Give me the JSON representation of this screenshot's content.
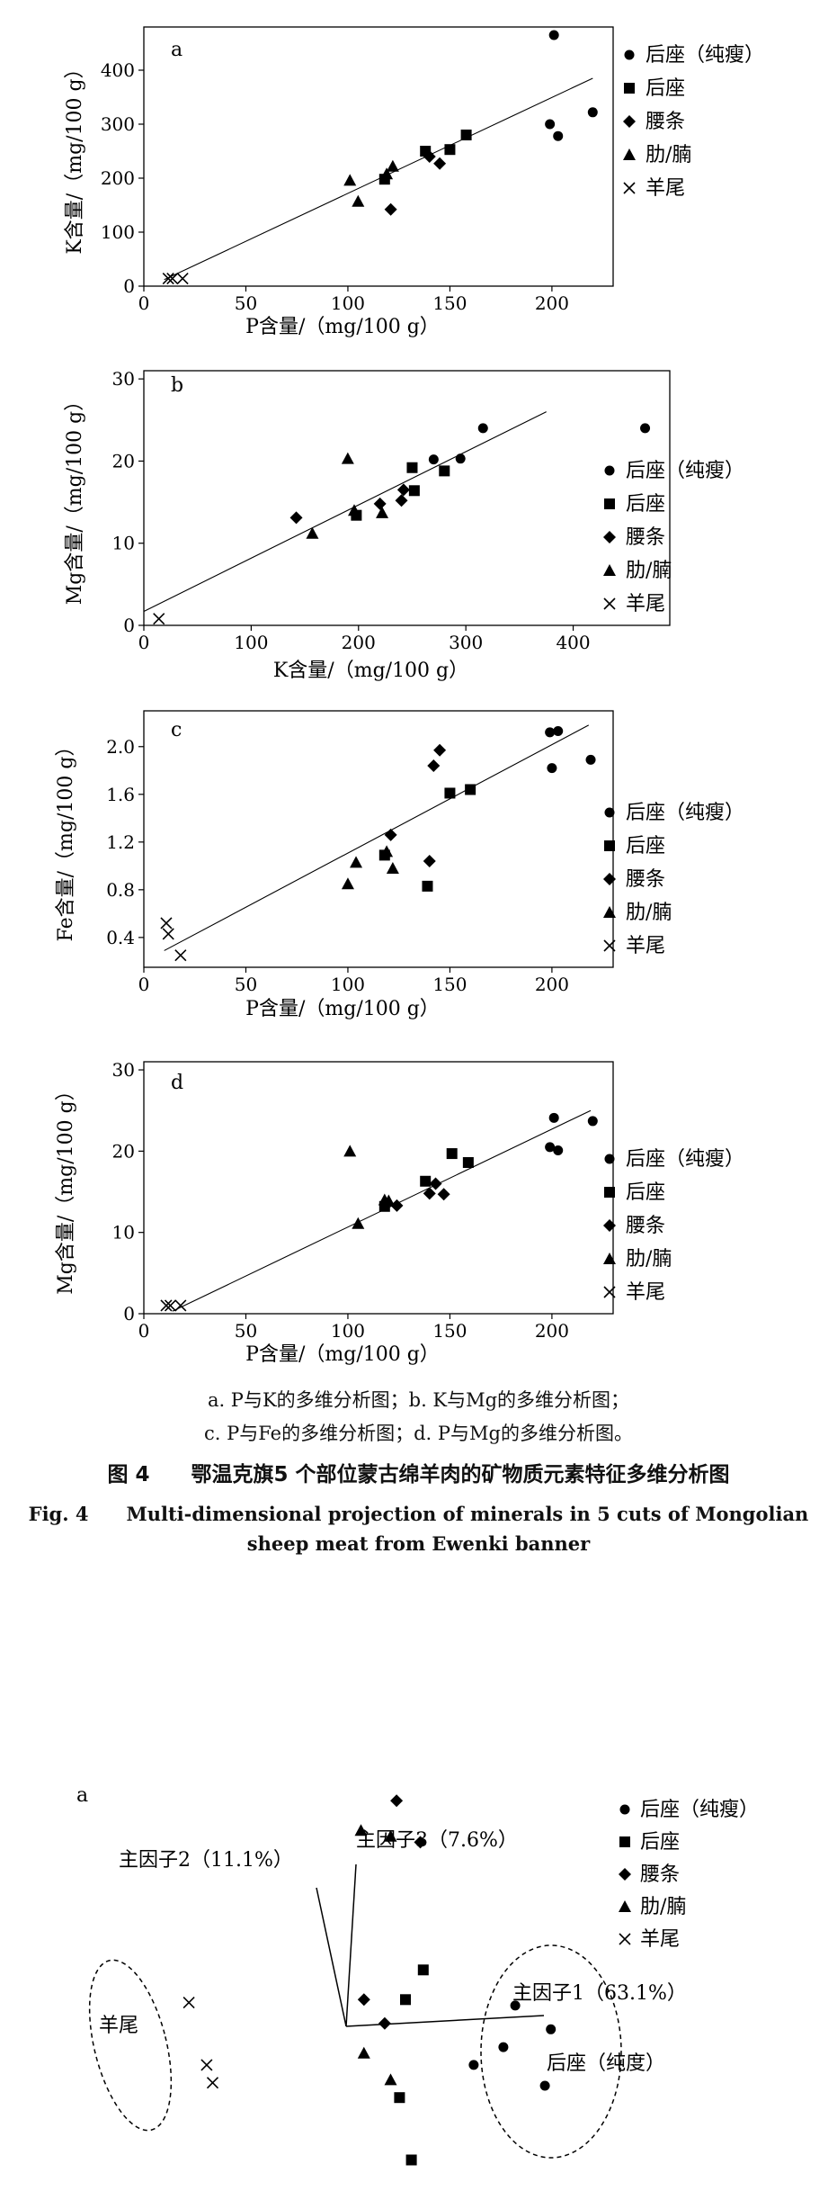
{
  "legend_labels": [
    "后座（纯瘦）",
    "后座",
    "腰条",
    "肋/腩",
    "羊尾"
  ],
  "caption": {
    "line1": "a. P与K的多维分析图；b. K与Mg的多维分析图；",
    "line2": "c. P与Fe的多维分析图；d. P与Mg的多维分析图。",
    "title_cn": "图 4　　鄂温克旗5 个部位蒙古绵羊肉的矿物质元素特征多维分析图",
    "title_en_1": "Fig. 4　　Multi-dimensional projection of minerals in 5 cuts of Mongolian",
    "title_en_2": "sheep meat from Ewenki banner"
  },
  "chart_data": [
    {
      "type": "scatter",
      "panel_label": "a",
      "xlabel": "P含量/（mg/100 g）",
      "ylabel": "K含量/（mg/100 g）",
      "xlim": [
        0,
        230
      ],
      "ylim": [
        0,
        480
      ],
      "xticks": [
        0,
        50,
        100,
        150,
        200
      ],
      "yticks": [
        0,
        100,
        200,
        300,
        400
      ],
      "legend_position": "right",
      "series": [
        {
          "name": "后座（纯瘦）",
          "marker": "circle",
          "points": [
            [
              201,
              465
            ],
            [
              199,
              300
            ],
            [
              203,
              278
            ],
            [
              220,
              322
            ]
          ]
        },
        {
          "name": "后座",
          "marker": "square",
          "points": [
            [
              118,
              198
            ],
            [
              138,
              250
            ],
            [
              150,
              253
            ],
            [
              158,
              280
            ]
          ]
        },
        {
          "name": "腰条",
          "marker": "diamond",
          "points": [
            [
              121,
              142
            ],
            [
              140,
              240
            ],
            [
              145,
              227
            ]
          ]
        },
        {
          "name": "肋/腩",
          "marker": "triangle",
          "points": [
            [
              101,
              196
            ],
            [
              105,
              157
            ],
            [
              119,
              208
            ],
            [
              122,
              222
            ]
          ]
        },
        {
          "name": "羊尾",
          "marker": "cross",
          "points": [
            [
              12,
              14
            ],
            [
              14,
              14
            ],
            [
              19,
              14
            ]
          ]
        }
      ],
      "trendline": [
        [
          10,
          12
        ],
        [
          220,
          385
        ]
      ]
    },
    {
      "type": "scatter",
      "panel_label": "b",
      "xlabel": "K含量/（mg/100 g）",
      "ylabel": "Mg含量/（mg/100 g）",
      "xlim": [
        0,
        490
      ],
      "ylim": [
        0,
        31
      ],
      "xticks": [
        0,
        100,
        200,
        300,
        400
      ],
      "yticks": [
        0,
        10,
        20,
        30
      ],
      "legend_position": "right",
      "series": [
        {
          "name": "后座（纯瘦）",
          "marker": "circle",
          "points": [
            [
              270,
              20.2
            ],
            [
              295,
              20.3
            ],
            [
              316,
              24.0
            ],
            [
              467,
              24.0
            ]
          ]
        },
        {
          "name": "后座",
          "marker": "square",
          "points": [
            [
              198,
              13.4
            ],
            [
              250,
              19.2
            ],
            [
              252,
              16.4
            ],
            [
              280,
              18.8
            ]
          ]
        },
        {
          "name": "腰条",
          "marker": "diamond",
          "points": [
            [
              142,
              13.1
            ],
            [
              220,
              14.8
            ],
            [
              240,
              15.2
            ],
            [
              242,
              16.5
            ]
          ]
        },
        {
          "name": "肋/腩",
          "marker": "triangle",
          "points": [
            [
              157,
              11.2
            ],
            [
              190,
              20.3
            ],
            [
              196,
              14.0
            ],
            [
              222,
              13.7
            ]
          ]
        },
        {
          "name": "羊尾",
          "marker": "cross",
          "points": [
            [
              14,
              0.8
            ]
          ]
        }
      ],
      "trendline": [
        [
          0,
          1.7
        ],
        [
          375,
          26.0
        ]
      ]
    },
    {
      "type": "scatter",
      "panel_label": "c",
      "xlabel": "P含量/（mg/100 g）",
      "ylabel": "Fe含量/（mg/100 g）",
      "xlim": [
        0,
        230
      ],
      "ylim": [
        0.15,
        2.3
      ],
      "xticks": [
        0,
        50,
        100,
        150,
        200
      ],
      "yticks": [
        0.4,
        0.8,
        1.2,
        1.6,
        2.0
      ],
      "legend_position": "right",
      "series": [
        {
          "name": "后座（纯瘦）",
          "marker": "circle",
          "points": [
            [
              199,
              2.12
            ],
            [
              203,
              2.13
            ],
            [
              200,
              1.82
            ],
            [
              219,
              1.89
            ]
          ]
        },
        {
          "name": "后座",
          "marker": "square",
          "points": [
            [
              118,
              1.09
            ],
            [
              139,
              0.83
            ],
            [
              150,
              1.61
            ],
            [
              160,
              1.64
            ]
          ]
        },
        {
          "name": "腰条",
          "marker": "diamond",
          "points": [
            [
              121,
              1.26
            ],
            [
              140,
              1.04
            ],
            [
              142,
              1.84
            ],
            [
              145,
              1.97
            ]
          ]
        },
        {
          "name": "肋/腩",
          "marker": "triangle",
          "points": [
            [
              100,
              0.85
            ],
            [
              104,
              1.03
            ],
            [
              119,
              1.12
            ],
            [
              122,
              0.98
            ]
          ]
        },
        {
          "name": "羊尾",
          "marker": "cross",
          "points": [
            [
              11,
              0.52
            ],
            [
              12,
              0.43
            ],
            [
              18,
              0.25
            ]
          ]
        }
      ],
      "trendline": [
        [
          10,
          0.29
        ],
        [
          218,
          2.18
        ]
      ]
    },
    {
      "type": "scatter",
      "panel_label": "d",
      "xlabel": "P含量/（mg/100 g）",
      "ylabel": "Mg含量/（mg/100 g）",
      "xlim": [
        0,
        230
      ],
      "ylim": [
        0,
        31
      ],
      "xticks": [
        0,
        50,
        100,
        150,
        200
      ],
      "yticks": [
        0,
        10,
        20,
        30
      ],
      "legend_position": "right",
      "series": [
        {
          "name": "后座（纯瘦）",
          "marker": "circle",
          "points": [
            [
              199,
              20.5
            ],
            [
              203,
              20.1
            ],
            [
              201,
              24.1
            ],
            [
              220,
              23.7
            ]
          ]
        },
        {
          "name": "后座",
          "marker": "square",
          "points": [
            [
              118,
              13.2
            ],
            [
              138,
              16.3
            ],
            [
              151,
              19.7
            ],
            [
              159,
              18.6
            ]
          ]
        },
        {
          "name": "腰条",
          "marker": "diamond",
          "points": [
            [
              124,
              13.3
            ],
            [
              140,
              14.8
            ],
            [
              143,
              16.0
            ],
            [
              147,
              14.7
            ]
          ]
        },
        {
          "name": "肋/腩",
          "marker": "triangle",
          "points": [
            [
              101,
              20.0
            ],
            [
              105,
              11.1
            ],
            [
              118,
              14.0
            ],
            [
              120,
              13.9
            ]
          ]
        },
        {
          "name": "羊尾",
          "marker": "cross",
          "points": [
            [
              11,
              1.0
            ],
            [
              13,
              1.0
            ],
            [
              18,
              1.0
            ]
          ]
        }
      ],
      "trendline": [
        [
          14,
          0.3
        ],
        [
          219,
          25.0
        ]
      ]
    },
    {
      "type": "scatter",
      "panel_label": "a",
      "subtype": "biplot",
      "legend_position": "top-right",
      "axis_labels": [
        "主因子1（63.1%）",
        "主因子2（11.1%）",
        "主因子3（7.6%）"
      ],
      "group_labels": [
        "羊尾",
        "后座（纯度）"
      ],
      "series": [
        {
          "name": "后座（纯瘦）",
          "marker": "circle",
          "points": [
            [
              2.65,
              -0.35
            ],
            [
              3.45,
              -0.05
            ],
            [
              2.15,
              -0.65
            ],
            [
              3.35,
              -1.0
            ],
            [
              2.85,
              0.35
            ]
          ]
        },
        {
          "name": "后座",
          "marker": "square",
          "points": [
            [
              1.3,
              0.95
            ],
            [
              1.0,
              0.45
            ],
            [
              0.9,
              -1.2
            ],
            [
              1.1,
              -2.25
            ]
          ]
        },
        {
          "name": "腰条",
          "marker": "diamond",
          "points": [
            [
              0.85,
              3.8
            ],
            [
              1.25,
              3.1
            ],
            [
              0.3,
              0.45
            ],
            [
              0.65,
              0.05
            ]
          ]
        },
        {
          "name": "肋/腩",
          "marker": "triangle",
          "points": [
            [
              0.25,
              3.3
            ],
            [
              0.75,
              3.2
            ],
            [
              0.3,
              -0.45
            ],
            [
              0.75,
              -0.9
            ]
          ]
        },
        {
          "name": "羊尾",
          "marker": "cross",
          "points": [
            [
              -2.65,
              0.4
            ],
            [
              -2.35,
              -0.65
            ],
            [
              -2.25,
              -0.95
            ]
          ]
        }
      ]
    }
  ]
}
